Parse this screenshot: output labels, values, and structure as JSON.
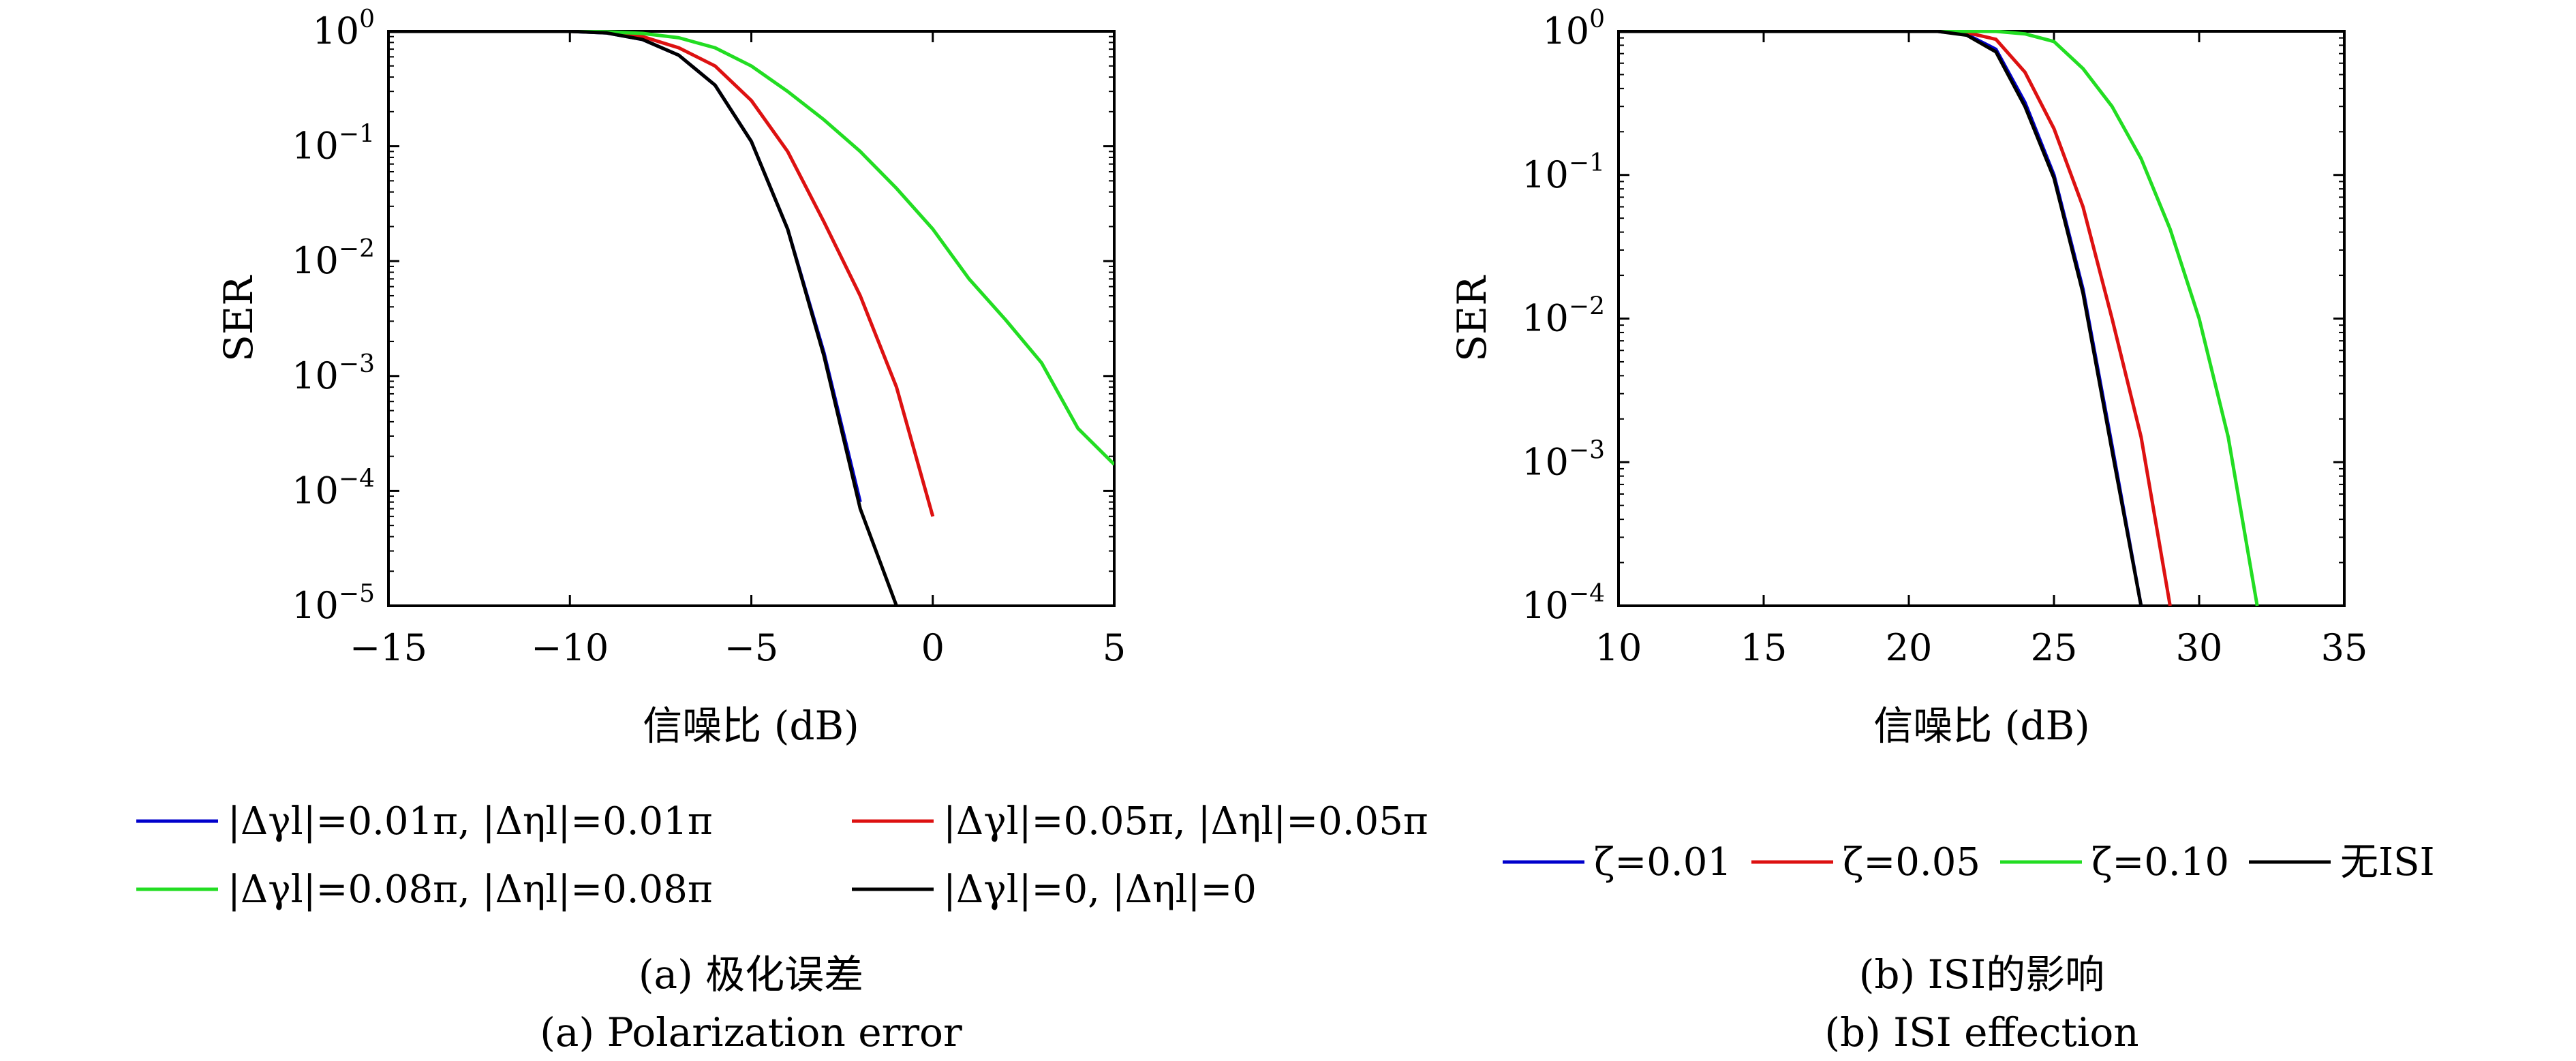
{
  "chart_data": [
    {
      "type": "line",
      "xlabel": "信噪比 (dB)",
      "ylabel": "SER",
      "xlim": [
        -15,
        5
      ],
      "ylim": [
        1e-05,
        1
      ],
      "yscale": "log",
      "xticks": [
        -15,
        -10,
        -5,
        0,
        5
      ],
      "xtick_labels": [
        "−15",
        "−10",
        "−5",
        "0",
        "5"
      ],
      "yticks": [
        1e-05,
        0.0001,
        0.001,
        0.01,
        0.1,
        1
      ],
      "ytick_labels": [
        {
          "base": "10",
          "exp": "−5"
        },
        {
          "base": "10",
          "exp": "−4"
        },
        {
          "base": "10",
          "exp": "−3"
        },
        {
          "base": "10",
          "exp": "−2"
        },
        {
          "base": "10",
          "exp": "−1"
        },
        {
          "base": "10",
          "exp": "0"
        }
      ],
      "legend_position": "below",
      "series": [
        {
          "name": "|Δγl|=0.01π, |Δηl|=0.01π",
          "color": "#0000cc",
          "x": [
            -15,
            -12,
            -10,
            -9,
            -8,
            -7,
            -6,
            -5,
            -4,
            -3,
            -2
          ],
          "y": [
            1,
            1,
            1,
            0.97,
            0.85,
            0.62,
            0.34,
            0.11,
            0.019,
            0.0016,
            8e-05
          ]
        },
        {
          "name": "|Δγl|=0.05π, |Δηl|=0.05π",
          "color": "#dd1111",
          "x": [
            -15,
            -12,
            -10,
            -9,
            -8,
            -7,
            -6,
            -5,
            -4,
            -3,
            -2,
            -1,
            0
          ],
          "y": [
            1,
            1,
            1,
            0.98,
            0.9,
            0.72,
            0.5,
            0.25,
            0.09,
            0.022,
            0.005,
            0.0008,
            6e-05
          ]
        },
        {
          "name": "|Δγl|=0.08π, |Δηl|=0.08π",
          "color": "#22dd22",
          "x": [
            -15,
            -12,
            -10,
            -9,
            -8,
            -7,
            -6,
            -5,
            -4,
            -3,
            -2,
            -1,
            0,
            1,
            2,
            3,
            4,
            5
          ],
          "y": [
            1,
            1,
            1,
            0.99,
            0.96,
            0.88,
            0.72,
            0.5,
            0.3,
            0.17,
            0.09,
            0.043,
            0.019,
            0.007,
            0.0031,
            0.0013,
            0.00035,
            0.00017
          ]
        },
        {
          "name": "|Δγl|=0, |Δηl|=0",
          "color": "#000000",
          "x": [
            -15,
            -12,
            -10,
            -9,
            -8,
            -7,
            -6,
            -5,
            -4,
            -3,
            -2,
            -1
          ],
          "y": [
            1,
            1,
            1,
            0.97,
            0.85,
            0.62,
            0.34,
            0.11,
            0.019,
            0.0015,
            7e-05,
            1e-05
          ]
        }
      ],
      "caption_zh": "(a) 极化误差",
      "caption_en": "(a) Polarization error"
    },
    {
      "type": "line",
      "xlabel": "信噪比 (dB)",
      "ylabel": "SER",
      "xlim": [
        10,
        35
      ],
      "ylim": [
        0.0001,
        1
      ],
      "yscale": "log",
      "xticks": [
        10,
        15,
        20,
        25,
        30,
        35
      ],
      "xtick_labels": [
        "10",
        "15",
        "20",
        "25",
        "30",
        "35"
      ],
      "yticks": [
        0.0001,
        0.001,
        0.01,
        0.1,
        1
      ],
      "ytick_labels": [
        {
          "base": "10",
          "exp": "−4"
        },
        {
          "base": "10",
          "exp": "−3"
        },
        {
          "base": "10",
          "exp": "−2"
        },
        {
          "base": "10",
          "exp": "−1"
        },
        {
          "base": "10",
          "exp": "0"
        }
      ],
      "legend_position": "below",
      "series": [
        {
          "name": "ζ=0.01",
          "color": "#0000cc",
          "x": [
            10,
            15,
            20,
            21,
            22,
            23,
            24,
            25,
            26,
            27,
            28
          ],
          "y": [
            1,
            1,
            1,
            1,
            0.95,
            0.75,
            0.32,
            0.1,
            0.016,
            0.0013,
            0.0001
          ]
        },
        {
          "name": "ζ=0.05",
          "color": "#dd1111",
          "x": [
            10,
            15,
            20,
            21,
            22,
            23,
            24,
            25,
            26,
            27,
            28,
            29
          ],
          "y": [
            1,
            1,
            1,
            1,
            0.98,
            0.88,
            0.52,
            0.21,
            0.06,
            0.01,
            0.0015,
            0.0001
          ]
        },
        {
          "name": "ζ=0.10",
          "color": "#22dd22",
          "x": [
            10,
            15,
            20,
            22,
            23,
            24,
            25,
            26,
            27,
            28,
            29,
            30,
            31,
            32
          ],
          "y": [
            1,
            1,
            1,
            1,
            1,
            0.96,
            0.85,
            0.55,
            0.3,
            0.13,
            0.042,
            0.01,
            0.0015,
            0.0001
          ]
        },
        {
          "name": "无ISI",
          "color": "#000000",
          "x": [
            10,
            15,
            20,
            21,
            22,
            23,
            24,
            25,
            26,
            27,
            28
          ],
          "y": [
            1,
            1,
            1,
            1,
            0.94,
            0.72,
            0.3,
            0.095,
            0.015,
            0.0012,
            0.0001
          ]
        }
      ],
      "caption_zh": "(b) ISI的影响",
      "caption_en": "(b) ISI effection"
    }
  ]
}
